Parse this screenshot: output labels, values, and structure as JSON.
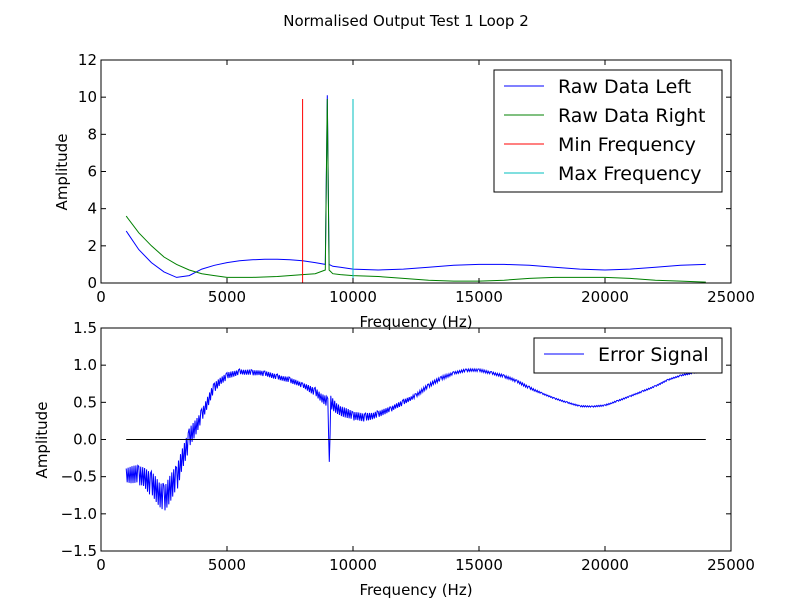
{
  "title": "Normalised Output Test 1 Loop 2",
  "colors": {
    "raw_left": "#0000ff",
    "raw_right": "#008000",
    "min_freq": "#ff0000",
    "max_freq": "#00bfbf",
    "error": "#0000ff",
    "zero_line": "#000000"
  },
  "chart_data": [
    {
      "type": "line",
      "xlabel": "Frequency (Hz)",
      "ylabel": "Amplitude",
      "xlim": [
        0,
        25000
      ],
      "ylim": [
        0,
        12
      ],
      "xticks": [
        0,
        5000,
        10000,
        15000,
        20000,
        25000
      ],
      "yticks": [
        0,
        2,
        4,
        6,
        8,
        10,
        12
      ],
      "xtick_labels": [
        "0",
        "5000",
        "10000",
        "15000",
        "20000",
        "25000"
      ],
      "ytick_labels": [
        "0",
        "2",
        "4",
        "6",
        "8",
        "10",
        "12"
      ],
      "grid": false,
      "legend_position": "top-right",
      "series": [
        {
          "name": "Raw Data Left",
          "color": "#0000ff",
          "x": [
            1000,
            1500,
            2000,
            2500,
            3000,
            3500,
            4000,
            4500,
            5000,
            5500,
            6000,
            6500,
            7000,
            7500,
            8000,
            8500,
            8900,
            8980,
            9050,
            9200,
            9500,
            10000,
            11000,
            12000,
            13000,
            14000,
            15000,
            16000,
            17000,
            18000,
            19000,
            20000,
            21000,
            22000,
            23000,
            24000
          ],
          "y": [
            2.8,
            1.8,
            1.1,
            0.6,
            0.3,
            0.4,
            0.75,
            0.95,
            1.1,
            1.2,
            1.25,
            1.28,
            1.28,
            1.25,
            1.2,
            1.1,
            1.0,
            10.1,
            1.0,
            0.9,
            0.85,
            0.75,
            0.7,
            0.75,
            0.85,
            0.95,
            1.0,
            1.0,
            0.95,
            0.85,
            0.75,
            0.7,
            0.75,
            0.85,
            0.95,
            1.0
          ]
        },
        {
          "name": "Raw Data Right",
          "color": "#008000",
          "x": [
            1000,
            1500,
            2000,
            2500,
            3000,
            3500,
            4000,
            4500,
            5000,
            6000,
            7000,
            8000,
            8500,
            8900,
            8980,
            9050,
            9200,
            9500,
            10000,
            11000,
            12000,
            13000,
            14000,
            15000,
            16000,
            17000,
            18000,
            19000,
            20000,
            21000,
            22000,
            23000,
            24000
          ],
          "y": [
            3.6,
            2.7,
            2.0,
            1.4,
            1.0,
            0.7,
            0.5,
            0.4,
            0.3,
            0.3,
            0.35,
            0.45,
            0.5,
            0.7,
            9.9,
            0.7,
            0.5,
            0.45,
            0.4,
            0.35,
            0.25,
            0.15,
            0.1,
            0.1,
            0.15,
            0.25,
            0.3,
            0.3,
            0.3,
            0.25,
            0.15,
            0.1,
            0.05
          ]
        },
        {
          "name": "Min Frequency",
          "color": "#ff0000",
          "x": [
            8000,
            8000
          ],
          "y": [
            0,
            9.9
          ]
        },
        {
          "name": "Max Frequency",
          "color": "#00bfbf",
          "x": [
            10000,
            10000
          ],
          "y": [
            0,
            9.9
          ]
        }
      ]
    },
    {
      "type": "line",
      "xlabel": "Frequency (Hz)",
      "ylabel": "Amplitude",
      "xlim": [
        0,
        25000
      ],
      "ylim": [
        -1.5,
        1.5
      ],
      "xticks": [
        0,
        5000,
        10000,
        15000,
        20000,
        25000
      ],
      "yticks": [
        -1.5,
        -1.0,
        -0.5,
        0.0,
        0.5,
        1.0,
        1.5
      ],
      "xtick_labels": [
        "0",
        "5000",
        "10000",
        "15000",
        "20000",
        "25000"
      ],
      "ytick_labels": [
        "−1.5",
        "−1.0",
        "−0.5",
        "0.0",
        "0.5",
        "1.0",
        "1.5"
      ],
      "grid": false,
      "legend_position": "top-right",
      "series": [
        {
          "name": "Error Signal",
          "color": "#0000ff",
          "x": [
            1000,
            1500,
            2000,
            2500,
            3000,
            3500,
            4000,
            4500,
            5000,
            5500,
            6000,
            6500,
            7000,
            7500,
            8000,
            8500,
            9000,
            9060,
            9120,
            9500,
            10000,
            10500,
            11000,
            11500,
            12000,
            12500,
            13000,
            13500,
            14000,
            14500,
            15000,
            15500,
            16000,
            16500,
            17000,
            17500,
            18000,
            18500,
            19000,
            19500,
            20000,
            20500,
            21000,
            21500,
            22000,
            22500,
            23000,
            23500,
            24000
          ],
          "y": [
            -0.45,
            -0.5,
            -0.6,
            -0.75,
            -0.55,
            0.0,
            0.35,
            0.7,
            0.85,
            0.92,
            0.9,
            0.88,
            0.85,
            0.8,
            0.72,
            0.65,
            0.5,
            -0.3,
            0.5,
            0.4,
            0.3,
            0.3,
            0.35,
            0.4,
            0.5,
            0.6,
            0.72,
            0.82,
            0.9,
            0.93,
            0.93,
            0.9,
            0.85,
            0.78,
            0.7,
            0.62,
            0.55,
            0.5,
            0.45,
            0.44,
            0.46,
            0.52,
            0.58,
            0.65,
            0.72,
            0.8,
            0.86,
            0.9,
            0.92
          ],
          "noise": [
            0.12,
            0.15,
            0.18,
            0.22,
            0.2,
            0.15,
            0.1,
            0.07,
            0.05,
            0.04,
            0.04,
            0.04,
            0.04,
            0.04,
            0.04,
            0.06,
            0.08,
            0.0,
            0.1,
            0.08,
            0.07,
            0.06,
            0.05,
            0.04,
            0.04,
            0.03,
            0.03,
            0.03,
            0.02,
            0.02,
            0.02,
            0.02,
            0.02,
            0.02,
            0.02,
            0.01,
            0.01,
            0.01,
            0.01,
            0.01,
            0.01,
            0.01,
            0.01,
            0.01,
            0.01,
            0.01,
            0.01,
            0.01,
            0.01
          ]
        },
        {
          "name": "",
          "color": "#000000",
          "x": [
            1000,
            24000
          ],
          "y": [
            0,
            0
          ]
        }
      ]
    }
  ]
}
